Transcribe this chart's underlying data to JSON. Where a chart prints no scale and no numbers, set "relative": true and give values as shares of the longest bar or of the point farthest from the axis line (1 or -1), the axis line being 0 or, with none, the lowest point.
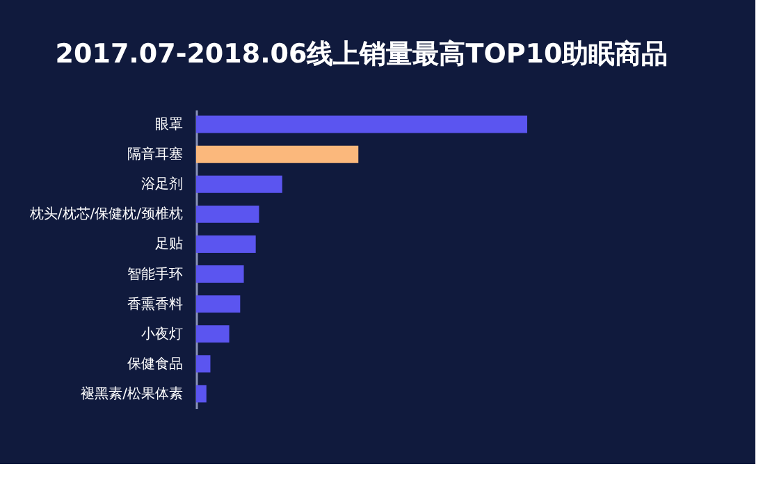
{
  "chart_data": {
    "type": "bar",
    "orientation": "horizontal",
    "relative": true,
    "title": "2017.07-2018.06线上销量最高TOP10助眠商品",
    "categories": [
      "眼罩",
      "隔音耳塞",
      "浴足剂",
      "枕头/枕芯/保健枕/颈椎枕",
      "足贴",
      "智能手环",
      "香熏香料",
      "小夜灯",
      "保健食品",
      "褪黑素/松果体素"
    ],
    "values": [
      1,
      0.49,
      0.26,
      0.19,
      0.18,
      0.144,
      0.133,
      0.1,
      0.043,
      0.031
    ],
    "colors": [
      "#5b55f0",
      "#fbb87c",
      "#5b55f0",
      "#5b55f0",
      "#5b55f0",
      "#5b55f0",
      "#5b55f0",
      "#5b55f0",
      "#5b55f0",
      "#5b55f0"
    ],
    "grid": false
  }
}
